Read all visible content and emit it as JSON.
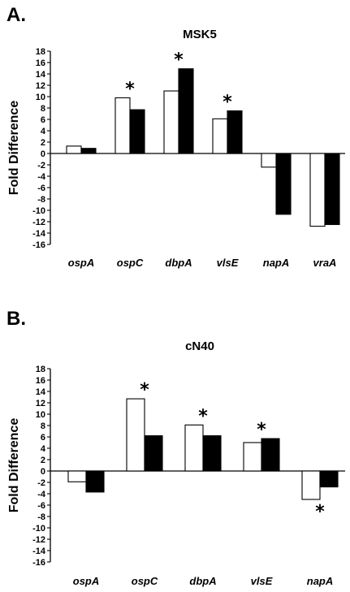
{
  "chart_data": [
    {
      "type": "bar",
      "panel_label": "A.",
      "title": "MSK5",
      "ylabel": "Fold Difference",
      "xlabel": "",
      "ylim": [
        -16,
        18
      ],
      "yticks": [
        "18",
        "16",
        "14",
        "12",
        "10",
        "8",
        "6",
        "4",
        "2",
        "0",
        "-2",
        "-4",
        "-6",
        "-8",
        "-10",
        "-12",
        "-14",
        "-16"
      ],
      "categories": [
        "ospA",
        "ospC",
        "dbpA",
        "vlsE",
        "napA",
        "vraA"
      ],
      "series": [
        {
          "values": [
            1.3,
            9.8,
            11.0,
            6.1,
            -2.4,
            -12.8
          ],
          "color": "#ffffff"
        },
        {
          "values": [
            0.9,
            7.7,
            14.9,
            7.5,
            -10.7,
            -12.5
          ],
          "color": "#000000"
        }
      ],
      "significance_marker": "*",
      "significant": [
        {
          "category": "ospC",
          "position": "above"
        },
        {
          "category": "dbpA",
          "position": "above"
        },
        {
          "category": "vlsE",
          "position": "above"
        }
      ]
    },
    {
      "type": "bar",
      "panel_label": "B.",
      "title": "cN40",
      "ylabel": "Fold Difference",
      "xlabel": "",
      "ylim": [
        -16,
        18
      ],
      "yticks": [
        "18",
        "16",
        "14",
        "12",
        "10",
        "8",
        "6",
        "4",
        "2",
        "0",
        "-2",
        "-4",
        "-6",
        "-8",
        "-10",
        "-12",
        "-14",
        "-16"
      ],
      "categories": [
        "ospA",
        "ospC",
        "dbpA",
        "vlsE",
        "napA"
      ],
      "series": [
        {
          "values": [
            -1.9,
            12.7,
            8.1,
            5.0,
            -5.0
          ],
          "color": "#ffffff"
        },
        {
          "values": [
            -3.7,
            6.2,
            6.2,
            5.7,
            -2.8
          ],
          "color": "#000000"
        }
      ],
      "significance_marker": "*",
      "significant": [
        {
          "category": "ospC",
          "position": "above"
        },
        {
          "category": "dbpA",
          "position": "above"
        },
        {
          "category": "vlsE",
          "position": "above"
        },
        {
          "category": "napA",
          "position": "below"
        }
      ]
    }
  ]
}
